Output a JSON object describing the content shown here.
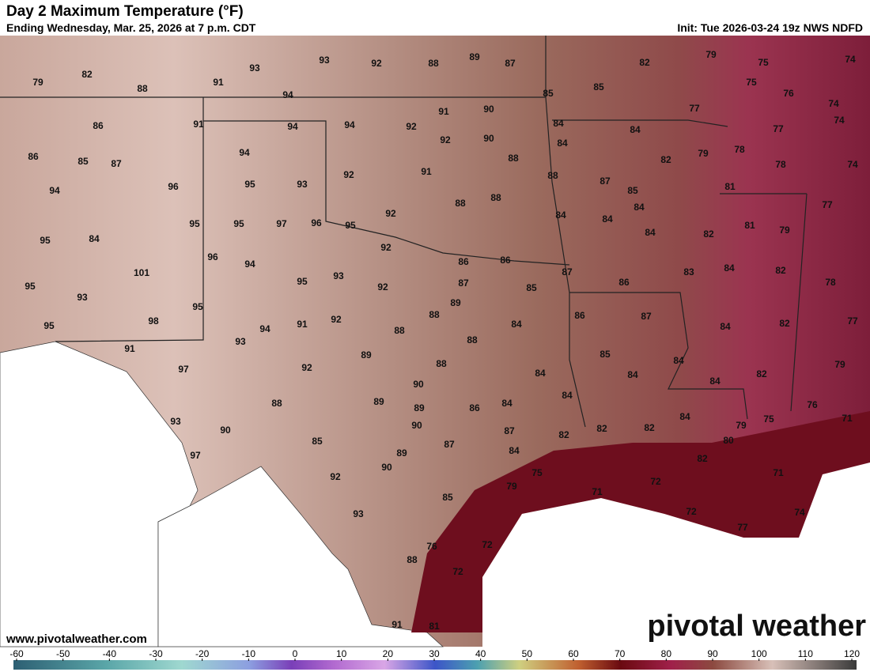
{
  "header": {
    "title": "Day 2 Maximum Temperature (°F)",
    "subtitle": "Ending Wednesday, Mar. 25, 2026 at 7 p.m. CDT",
    "init": "Init: Tue 2026-03-24 19z NWS NDFD"
  },
  "map_labels": [
    79,
    82,
    88,
    91,
    93,
    93,
    92,
    88,
    89,
    87,
    82,
    79,
    75,
    74,
    94,
    85,
    85,
    75,
    76,
    74,
    77,
    91,
    90,
    94,
    94,
    92,
    86,
    91,
    84,
    84,
    77,
    74,
    92,
    90,
    84,
    94,
    86,
    85,
    87,
    88,
    82,
    79,
    78,
    78,
    74,
    91,
    92,
    95,
    93,
    88,
    87,
    85,
    94,
    96,
    88,
    88,
    81,
    77,
    92,
    84,
    84,
    84,
    95,
    95,
    97,
    96,
    95,
    81,
    79,
    84,
    82,
    95,
    84,
    92,
    86,
    86,
    96,
    94,
    87,
    83,
    84,
    82,
    101,
    93,
    95,
    92,
    87,
    85,
    86,
    78,
    95,
    93,
    89,
    95,
    88,
    86,
    87,
    98,
    94,
    91,
    92,
    84,
    84,
    82,
    77,
    95,
    93,
    88,
    88,
    91,
    89,
    85,
    84,
    97,
    92,
    88,
    84,
    84,
    84,
    82,
    79,
    90,
    84,
    88,
    89,
    89,
    86,
    84,
    76,
    71,
    93,
    90,
    90,
    87,
    84,
    75,
    79,
    82,
    82,
    82,
    80,
    85,
    87,
    84,
    97,
    89,
    90,
    75,
    82,
    71,
    92,
    79,
    72,
    71,
    85,
    72,
    74,
    93,
    77,
    72,
    76,
    88,
    72,
    91,
    81
  ],
  "watermark": {
    "url": "www.pivotalweather.com",
    "brand": "pivotal weather"
  },
  "colorbar": {
    "ticks": [
      -60,
      -50,
      -40,
      -30,
      -20,
      -10,
      0,
      10,
      20,
      30,
      40,
      50,
      60,
      70,
      80,
      90,
      100,
      110,
      120
    ]
  }
}
